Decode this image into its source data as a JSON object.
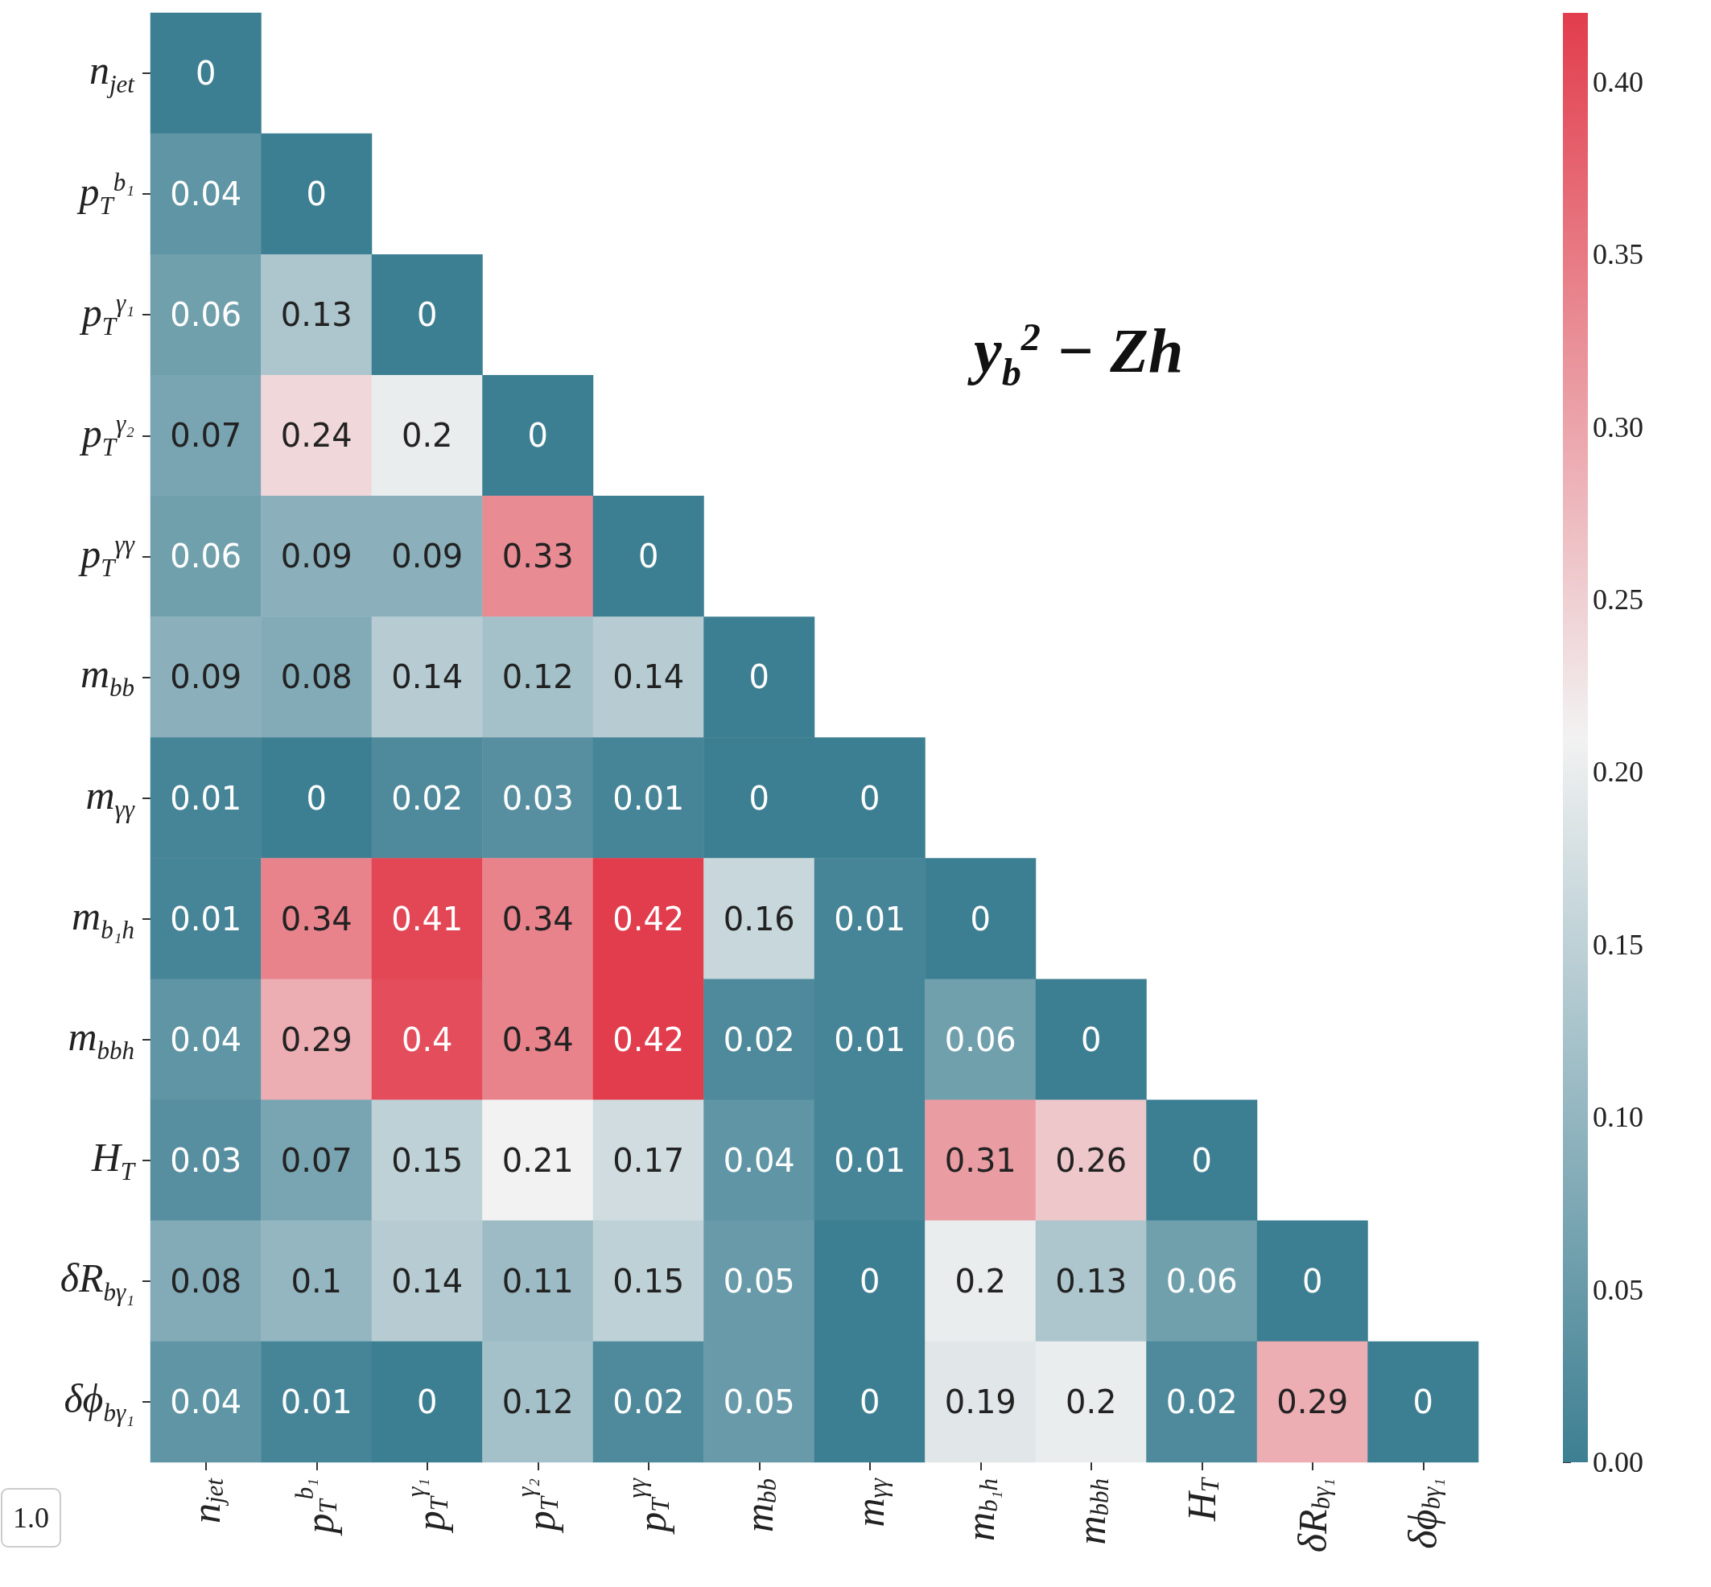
{
  "chart_data": {
    "type": "heatmap",
    "title": "y$_{b}$$^{2}$ − Zh",
    "categories": [
      "n$_{jet}$",
      "p$_{T}$$^{b₁}$",
      "p$_{T}$$^{γ₁}$",
      "p$_{T}$$^{γ₂}$",
      "p$_{T}$$^{γγ}$",
      "m$_{bb}$",
      "m$_{γγ}$",
      "m$_{b₁h}$",
      "m$_{bbh}$",
      "H$_{T}$",
      "δR$_{bγ₁}$",
      "δϕ$_{bγ₁}$"
    ],
    "y_categories": [
      "n$_{jet}$",
      "p$_{T}$$^{b₁}$",
      "p$_{T}$$^{γ₁}$",
      "p$_{T}$$^{γ₂}$",
      "p$_{T}$$^{γγ}$",
      "m$_{bb}$",
      "m$_{γγ}$",
      "m$_{b₁h}$",
      "m$_{bbh}$",
      "H$_{T}$",
      "δR$_{bγ₁}$",
      "δϕ$_{bγ₁}$"
    ],
    "cells": [
      [
        0,
        null,
        null,
        null,
        null,
        null,
        null,
        null,
        null,
        null,
        null,
        null
      ],
      [
        0.04,
        0,
        null,
        null,
        null,
        null,
        null,
        null,
        null,
        null,
        null,
        null
      ],
      [
        0.06,
        0.13,
        0,
        null,
        null,
        null,
        null,
        null,
        null,
        null,
        null,
        null
      ],
      [
        0.07,
        0.24,
        0.2,
        0,
        null,
        null,
        null,
        null,
        null,
        null,
        null,
        null
      ],
      [
        0.06,
        0.09,
        0.09,
        0.33,
        0,
        null,
        null,
        null,
        null,
        null,
        null,
        null
      ],
      [
        0.09,
        0.08,
        0.14,
        0.12,
        0.14,
        0,
        null,
        null,
        null,
        null,
        null,
        null
      ],
      [
        0.01,
        0,
        0.02,
        0.03,
        0.01,
        0,
        0,
        null,
        null,
        null,
        null,
        null
      ],
      [
        0.01,
        0.34,
        0.41,
        0.34,
        0.42,
        0.16,
        0.01,
        0,
        null,
        null,
        null,
        null
      ],
      [
        0.04,
        0.29,
        0.4,
        0.34,
        0.42,
        0.02,
        0.01,
        0.06,
        0,
        null,
        null,
        null
      ],
      [
        0.03,
        0.07,
        0.15,
        0.21,
        0.17,
        0.04,
        0.01,
        0.31,
        0.26,
        0,
        null,
        null
      ],
      [
        0.08,
        0.1,
        0.14,
        0.11,
        0.15,
        0.05,
        0,
        0.2,
        0.13,
        0.06,
        0,
        null
      ],
      [
        0.04,
        0.01,
        0,
        0.12,
        0.02,
        0.05,
        0,
        0.19,
        0.2,
        0.02,
        0.29,
        0
      ]
    ],
    "data_labels": true,
    "clim": [
      0,
      0.42
    ],
    "cticks": [
      {
        "value": 0,
        "label": "0.00"
      },
      {
        "value": 0.05,
        "label": "0.05"
      },
      {
        "value": 0.1,
        "label": "0.10"
      },
      {
        "value": 0.15,
        "label": "0.15"
      },
      {
        "value": 0.2,
        "label": "0.20"
      },
      {
        "value": 0.25,
        "label": "0.25"
      },
      {
        "value": 0.3,
        "label": "0.30"
      },
      {
        "value": 0.35,
        "label": "0.35"
      },
      {
        "value": 0.4,
        "label": "0.40"
      }
    ],
    "annotations": [
      "1.0"
    ]
  }
}
